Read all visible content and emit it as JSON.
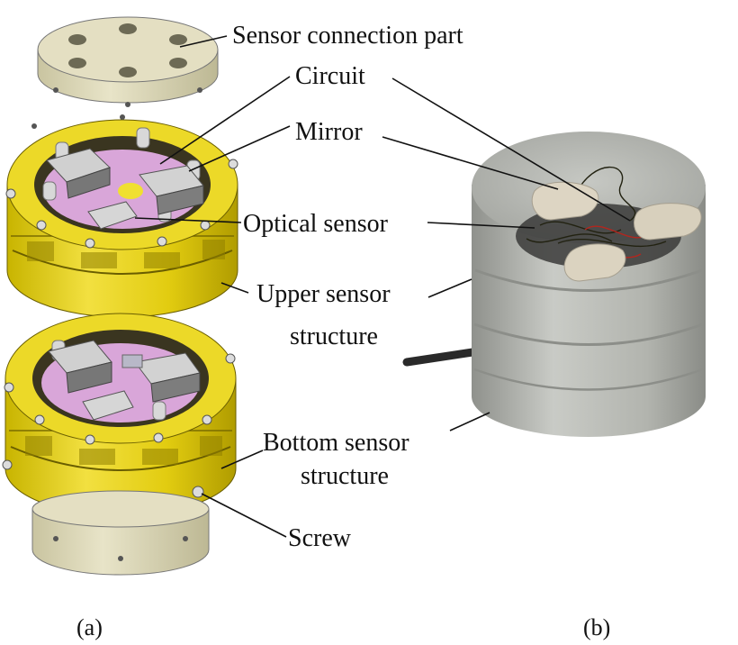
{
  "labels": {
    "sensor_connection": "Sensor connection part",
    "circuit": "Circuit",
    "mirror": "Mirror",
    "optical_sensor": "Optical sensor",
    "upper_line1": "Upper sensor",
    "upper_line2": "structure",
    "bottom_line1": "Bottom sensor",
    "bottom_line2": "structure",
    "screw": "Screw"
  },
  "captions": {
    "a": "(a)",
    "b": "(b)"
  },
  "colors": {
    "housing_yellow": "#e8d21e",
    "housing_dark": "#b9a400",
    "plate_beige": "#ddd8b8",
    "mirror_grey": "#c8c8c8",
    "board_pink": "#d9a6d9",
    "prototype_grey": "#b8bab4"
  }
}
